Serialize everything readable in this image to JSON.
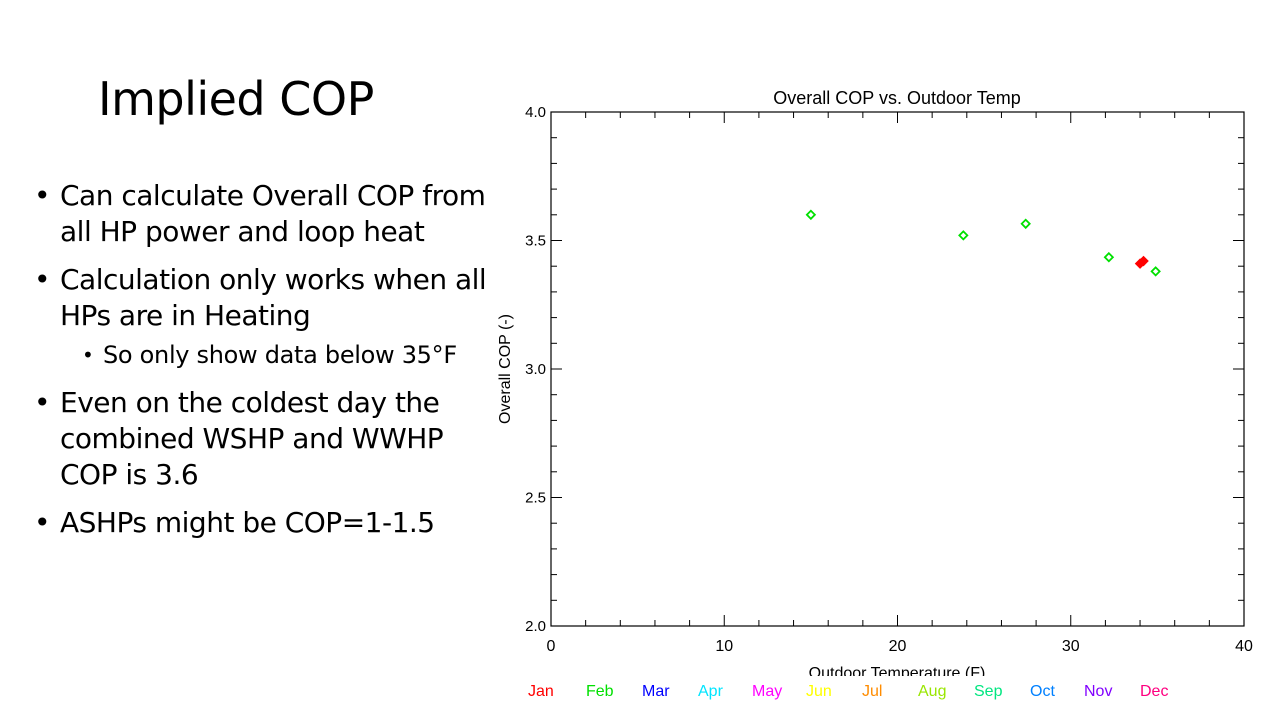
{
  "slide": {
    "title": "Implied COP",
    "bullets": [
      {
        "text": "Can calculate Overall COP from all HP power and loop heat"
      },
      {
        "text": "Calculation only works when all HPs are in Heating",
        "sub": "So only show data below 35°F"
      },
      {
        "text": "Even on the coldest day the combined WSHP and WWHP COP is 3.6"
      },
      {
        "text": "ASHPs might be COP=1-1.5"
      }
    ]
  },
  "chart_data": {
    "type": "scatter",
    "title": "Overall COP vs. Outdoor Temp",
    "xlabel": "Outdoor Temperature (F)",
    "ylabel": "Overall COP (-)",
    "xlim": [
      0,
      40
    ],
    "ylim": [
      2.0,
      4.0
    ],
    "x_ticks": [
      "0",
      "10",
      "20",
      "30",
      "40"
    ],
    "y_ticks": [
      "2.0",
      "2.5",
      "3.0",
      "3.5",
      "4.0"
    ],
    "grid": false,
    "legend_placement": "bottom",
    "legend": [
      {
        "name": "Jan",
        "color": "#ff0000"
      },
      {
        "name": "Feb",
        "color": "#00e000"
      },
      {
        "name": "Mar",
        "color": "#0000ff"
      },
      {
        "name": "Apr",
        "color": "#00e5ff"
      },
      {
        "name": "May",
        "color": "#ff00ff"
      },
      {
        "name": "Jun",
        "color": "#ffff00"
      },
      {
        "name": "Jul",
        "color": "#ff8c00"
      },
      {
        "name": "Aug",
        "color": "#99e600"
      },
      {
        "name": "Sep",
        "color": "#00e680"
      },
      {
        "name": "Oct",
        "color": "#0080ff"
      },
      {
        "name": "Nov",
        "color": "#8000ff"
      },
      {
        "name": "Dec",
        "color": "#ff0080"
      }
    ],
    "series": [
      {
        "month": "Feb",
        "color": "#00e000",
        "points": [
          {
            "x": 15.0,
            "y": 3.6
          },
          {
            "x": 23.8,
            "y": 3.52
          },
          {
            "x": 27.4,
            "y": 3.565
          },
          {
            "x": 32.2,
            "y": 3.435
          },
          {
            "x": 34.9,
            "y": 3.38
          }
        ]
      },
      {
        "month": "Jan",
        "color": "#ff0000",
        "points": [
          {
            "x": 34.0,
            "y": 3.41
          },
          {
            "x": 34.2,
            "y": 3.42
          }
        ]
      }
    ]
  }
}
